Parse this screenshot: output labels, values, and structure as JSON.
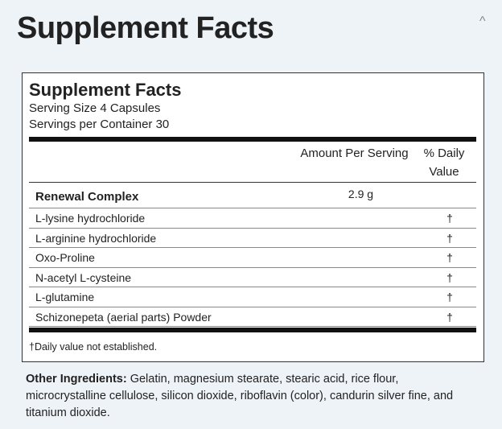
{
  "page": {
    "heading": "Supplement Facts",
    "collapse_icon": "^"
  },
  "label": {
    "title": "Supplement Facts",
    "serving_size": "Serving Size 4 Capsules",
    "servings_per_container": "Servings per Container 30",
    "columns": {
      "amount": "Amount Per Serving",
      "daily_value": "% Daily Value"
    },
    "rows": [
      {
        "name": "Renewal Complex",
        "amount": "2.9 g"
      },
      {
        "name": "L-lysine hydrochloride",
        "daily_value": "†"
      },
      {
        "name": "L-arginine hydrochloride",
        "daily_value": "†"
      },
      {
        "name": "Oxo-Proline",
        "daily_value": "†"
      },
      {
        "name": "N-acetyl L-cysteine",
        "daily_value": "†"
      },
      {
        "name": "L-glutamine",
        "daily_value": "†"
      },
      {
        "name": "Schizonepeta (aerial parts) Powder",
        "daily_value": "†"
      }
    ],
    "footnote": "†Daily value not established."
  },
  "other_ingredients": {
    "label": "Other Ingredients:",
    "text": "Gelatin, magnesium stearate, stearic acid, rice flour, microcrystalline cellulose, silicon dioxide, riboflavin (color), candurin silver fine, and titanium dioxide."
  }
}
